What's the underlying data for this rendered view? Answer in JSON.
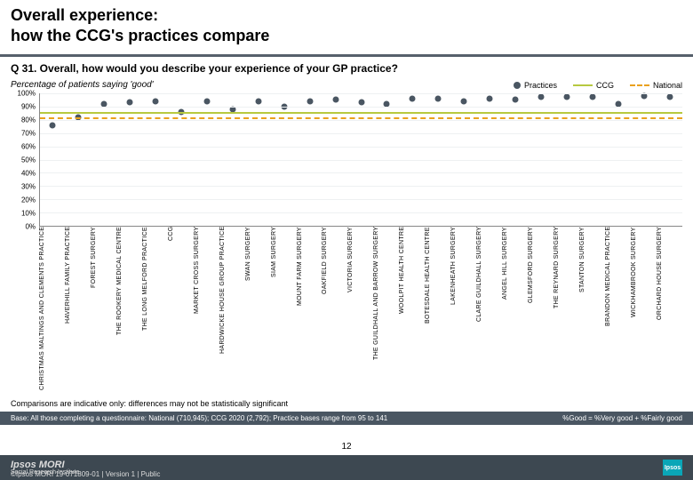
{
  "title_line1": "Overall experience:",
  "title_line2": "how the CCG's practices compare",
  "question": "Q 31. Overall, how would you describe your experience of your GP practice?",
  "subhead": "Percentage of patients saying 'good'",
  "legend": {
    "practices": "Practices",
    "ccg": "CCG",
    "national": "National"
  },
  "colors": {
    "practice_point": "#4a5662",
    "ccg_line": "#b7c940",
    "national_line": "#e9a11e",
    "grid": "#eef0f2",
    "axis": "#888888",
    "footer_bg": "#3d4851",
    "base_bg": "#4a5662"
  },
  "chart": {
    "type": "scatter",
    "ylim": [
      0,
      100
    ],
    "ytick_step": 10,
    "y_ticks": [
      0,
      10,
      20,
      30,
      40,
      50,
      60,
      70,
      80,
      90,
      100
    ],
    "ccg_value": 86,
    "national_value": 82,
    "practices": [
      {
        "name": "CHRISTMAS MALTINGS AND CLEMENTS PRACTICE",
        "value": 76
      },
      {
        "name": "HAVERHILL FAMILY PRACTICE",
        "value": 82
      },
      {
        "name": "FOREST SURGERY",
        "value": 92
      },
      {
        "name": "THE ROOKERY MEDICAL CENTRE",
        "value": 93
      },
      {
        "name": "THE LONG MELFORD PRACTICE",
        "value": 94
      },
      {
        "name": "CCG",
        "value": 86
      },
      {
        "name": "MARKET CROSS SURGERY",
        "value": 94
      },
      {
        "name": "HARDWICKE HOUSE GROUP PRACTICE",
        "value": 88
      },
      {
        "name": "SWAN SURGERY",
        "value": 94
      },
      {
        "name": "SIAM SURGERY",
        "value": 90
      },
      {
        "name": "MOUNT FARM SURGERY",
        "value": 94
      },
      {
        "name": "OAKFIELD SURGERY",
        "value": 95
      },
      {
        "name": "VICTORIA SURGERY",
        "value": 93
      },
      {
        "name": "THE GUILDHALL AND BARROW SURGERY",
        "value": 92
      },
      {
        "name": "WOOLPIT HEALTH CENTRE",
        "value": 96
      },
      {
        "name": "BOTESDALE HEALTH CENTRE",
        "value": 96
      },
      {
        "name": "LAKENHEATH SURGERY",
        "value": 94
      },
      {
        "name": "CLARE GUILDHALL SURGERY",
        "value": 96
      },
      {
        "name": "ANGEL HILL SURGERY",
        "value": 95
      },
      {
        "name": "GLEMSFORD SURGERY",
        "value": 97
      },
      {
        "name": "THE REYNARD SURGERY",
        "value": 97
      },
      {
        "name": "STANTON SURGERY",
        "value": 97
      },
      {
        "name": "BRANDON MEDICAL PRACTICE",
        "value": 92
      },
      {
        "name": "WICKHAMBROOK SURGERY",
        "value": 98
      },
      {
        "name": "ORCHARD HOUSE SURGERY",
        "value": 97
      }
    ]
  },
  "note": "Comparisons are indicative only: differences may not be statistically significant",
  "base_text": "Base: All those completing a questionnaire: National (710,945); CCG 2020 (2,792); Practice bases range from 95 to 141",
  "good_def": "%Good = %Very good + %Fairly good",
  "page_number": "12",
  "footer_left_brand": "Ipsos MORI",
  "footer_left_sub": "Social Research Institute",
  "footer_copyright": "©Ipsos MORI     19-071809-01 | Version 1 | Public",
  "footer_logo_text": "Ipsos"
}
